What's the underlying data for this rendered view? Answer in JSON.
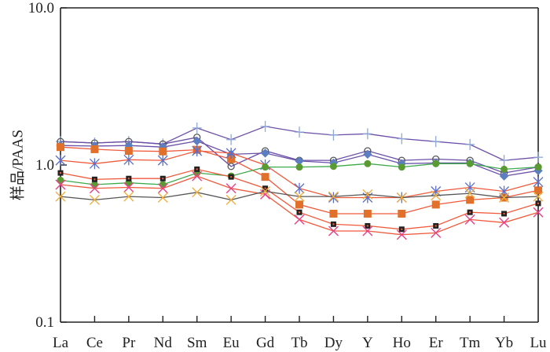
{
  "chart_data": {
    "type": "line",
    "title": "",
    "xlabel": "",
    "ylabel": "样品/PAAS",
    "yscale": "log",
    "ylim": [
      0.1,
      10.0
    ],
    "yticks": [
      0.1,
      1.0,
      10.0
    ],
    "ytick_labels": [
      "0.1",
      "1.0",
      "10.0"
    ],
    "grid": false,
    "legend": "none",
    "categories": [
      "La",
      "Ce",
      "Pr",
      "Nd",
      "Sm",
      "Eu",
      "Gd",
      "Tb",
      "Dy",
      "Y",
      "Ho",
      "Er",
      "Tm",
      "Yb",
      "Lu"
    ],
    "series": [
      {
        "name": "sample-plus",
        "marker": "plus",
        "line_color": "#6b4fa8",
        "marker_color": "#8fa8d8",
        "values": [
          1.41,
          1.38,
          1.41,
          1.36,
          1.72,
          1.45,
          1.76,
          1.62,
          1.55,
          1.58,
          1.47,
          1.41,
          1.35,
          1.07,
          1.12
        ]
      },
      {
        "name": "sample-open-circle",
        "marker": "open-circle",
        "line_color": "#6b4fa8",
        "marker_color": "#555555",
        "values": [
          1.41,
          1.38,
          1.41,
          1.36,
          1.5,
          0.98,
          1.23,
          1.07,
          1.07,
          1.23,
          1.07,
          1.09,
          1.07,
          0.89,
          0.97
        ]
      },
      {
        "name": "sample-diamond",
        "marker": "diamond",
        "line_color": "#6b4fa8",
        "marker_color": "#5b7fc0",
        "values": [
          1.33,
          1.32,
          1.33,
          1.3,
          1.42,
          1.17,
          1.19,
          1.06,
          1.03,
          1.17,
          1.02,
          1.03,
          1.03,
          0.85,
          0.92
        ]
      },
      {
        "name": "sample-orange-square",
        "marker": "square",
        "line_color": "#f05a3c",
        "marker_color": "#e0702a",
        "values": [
          1.3,
          1.26,
          1.23,
          1.22,
          1.25,
          1.09,
          0.84,
          0.56,
          0.49,
          0.49,
          0.49,
          0.56,
          0.6,
          0.62,
          0.69
        ]
      },
      {
        "name": "sample-asterisk",
        "marker": "asterisk",
        "line_color": "#f05a3c",
        "marker_color": "#5a6fc8",
        "values": [
          1.07,
          1.02,
          1.08,
          1.07,
          1.23,
          1.19,
          1.0,
          0.71,
          0.62,
          0.62,
          0.62,
          0.68,
          0.72,
          0.68,
          0.78
        ]
      },
      {
        "name": "sample-green-circle",
        "marker": "filled-circle",
        "line_color": "#3caa4a",
        "marker_color": "#5a9a32",
        "values": [
          0.8,
          0.75,
          0.77,
          0.75,
          0.89,
          0.85,
          0.97,
          0.97,
          0.98,
          1.02,
          0.97,
          1.02,
          1.02,
          0.94,
          0.97
        ]
      },
      {
        "name": "sample-black-square",
        "marker": "small-square",
        "line_color": "#f05a3c",
        "marker_color": "#222222",
        "values": [
          0.89,
          0.81,
          0.82,
          0.82,
          0.94,
          0.84,
          0.71,
          0.5,
          0.42,
          0.41,
          0.39,
          0.41,
          0.5,
          0.49,
          0.57
        ]
      },
      {
        "name": "sample-pink-x",
        "marker": "x",
        "line_color": "#f05a3c",
        "marker_color": "#e8408a",
        "values": [
          0.75,
          0.71,
          0.72,
          0.71,
          0.85,
          0.71,
          0.65,
          0.45,
          0.38,
          0.38,
          0.36,
          0.37,
          0.45,
          0.43,
          0.5
        ]
      },
      {
        "name": "sample-yellow-x",
        "marker": "x",
        "line_color": "#555555",
        "marker_color": "#f0b040",
        "values": [
          0.63,
          0.6,
          0.63,
          0.62,
          0.67,
          0.6,
          0.68,
          0.63,
          0.63,
          0.65,
          0.62,
          0.64,
          0.66,
          0.62,
          0.63
        ]
      }
    ]
  }
}
